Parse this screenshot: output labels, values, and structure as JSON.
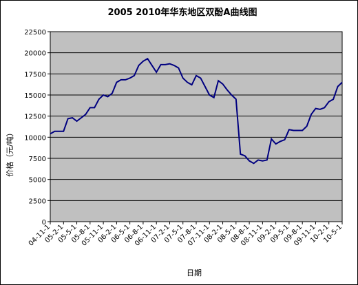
{
  "chart_data": {
    "type": "line",
    "title": "2005  2010年华东地区双酚A曲线图",
    "y_label": "价格（元/吨）",
    "x_label": "日期",
    "categories": [
      "04-11-1",
      null,
      null,
      "05-2-1",
      null,
      null,
      "05-5-1",
      null,
      null,
      "05-8-1",
      null,
      null,
      "05-11-1",
      null,
      null,
      "06-2-1",
      null,
      null,
      "06-5-1",
      null,
      null,
      "06-8-1",
      null,
      null,
      "06-11-1",
      null,
      null,
      "07-2-1",
      null,
      null,
      "07-5-1",
      null,
      null,
      "07-8-1",
      null,
      null,
      "07-11-1",
      null,
      null,
      "08-2-1",
      null,
      null,
      "08-5-1",
      null,
      null,
      "08-8-1",
      null,
      null,
      "08-11-1",
      null,
      null,
      "09-2-1",
      null,
      null,
      "09-5-1",
      null,
      null,
      "09-8-1",
      null,
      null,
      "09-11-1",
      null,
      null,
      "10-2-1",
      null,
      null,
      "10-5-1"
    ],
    "values": [
      10400,
      10700,
      10700,
      10700,
      12200,
      12300,
      11900,
      12300,
      12700,
      13500,
      13500,
      14500,
      15000,
      14800,
      15200,
      16500,
      16800,
      16800,
      17000,
      17300,
      18500,
      19000,
      19300,
      18500,
      17700,
      18600,
      18600,
      18700,
      18500,
      18200,
      17000,
      16500,
      16200,
      17300,
      17000,
      16000,
      15000,
      14700,
      16700,
      16300,
      15600,
      15000,
      14500,
      8000,
      7800,
      7200,
      6900,
      7300,
      7200,
      7300,
      9800,
      9200,
      9500,
      9700,
      10900,
      10800,
      10800,
      10800,
      11300,
      12700,
      13400,
      13300,
      13500,
      14200,
      14500,
      16000,
      16500
    ],
    "color": "#000080",
    "ylim": [
      0,
      22500
    ],
    "yticks": [
      0,
      2500,
      5000,
      7500,
      10000,
      12500,
      15000,
      17500,
      20000,
      22500
    ],
    "grid": true
  }
}
